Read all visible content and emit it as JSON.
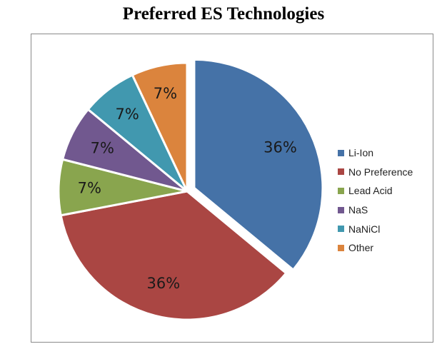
{
  "chart_data": {
    "type": "pie",
    "title": "Preferred ES Technologies",
    "categories": [
      "Li-Ion",
      "No Preference",
      "Lead Acid",
      "NaS",
      "NaNiCl",
      "Other"
    ],
    "values": [
      36,
      36,
      7,
      7,
      7,
      7
    ],
    "labels": [
      "36%",
      "36%",
      "7%",
      "7%",
      "7%",
      "7%"
    ],
    "colors": [
      "#4572a7",
      "#aa4643",
      "#89a54e",
      "#71588f",
      "#4198af",
      "#db843d"
    ],
    "exploded": [
      true,
      false,
      false,
      false,
      false,
      false
    ],
    "legend_position": "right"
  }
}
